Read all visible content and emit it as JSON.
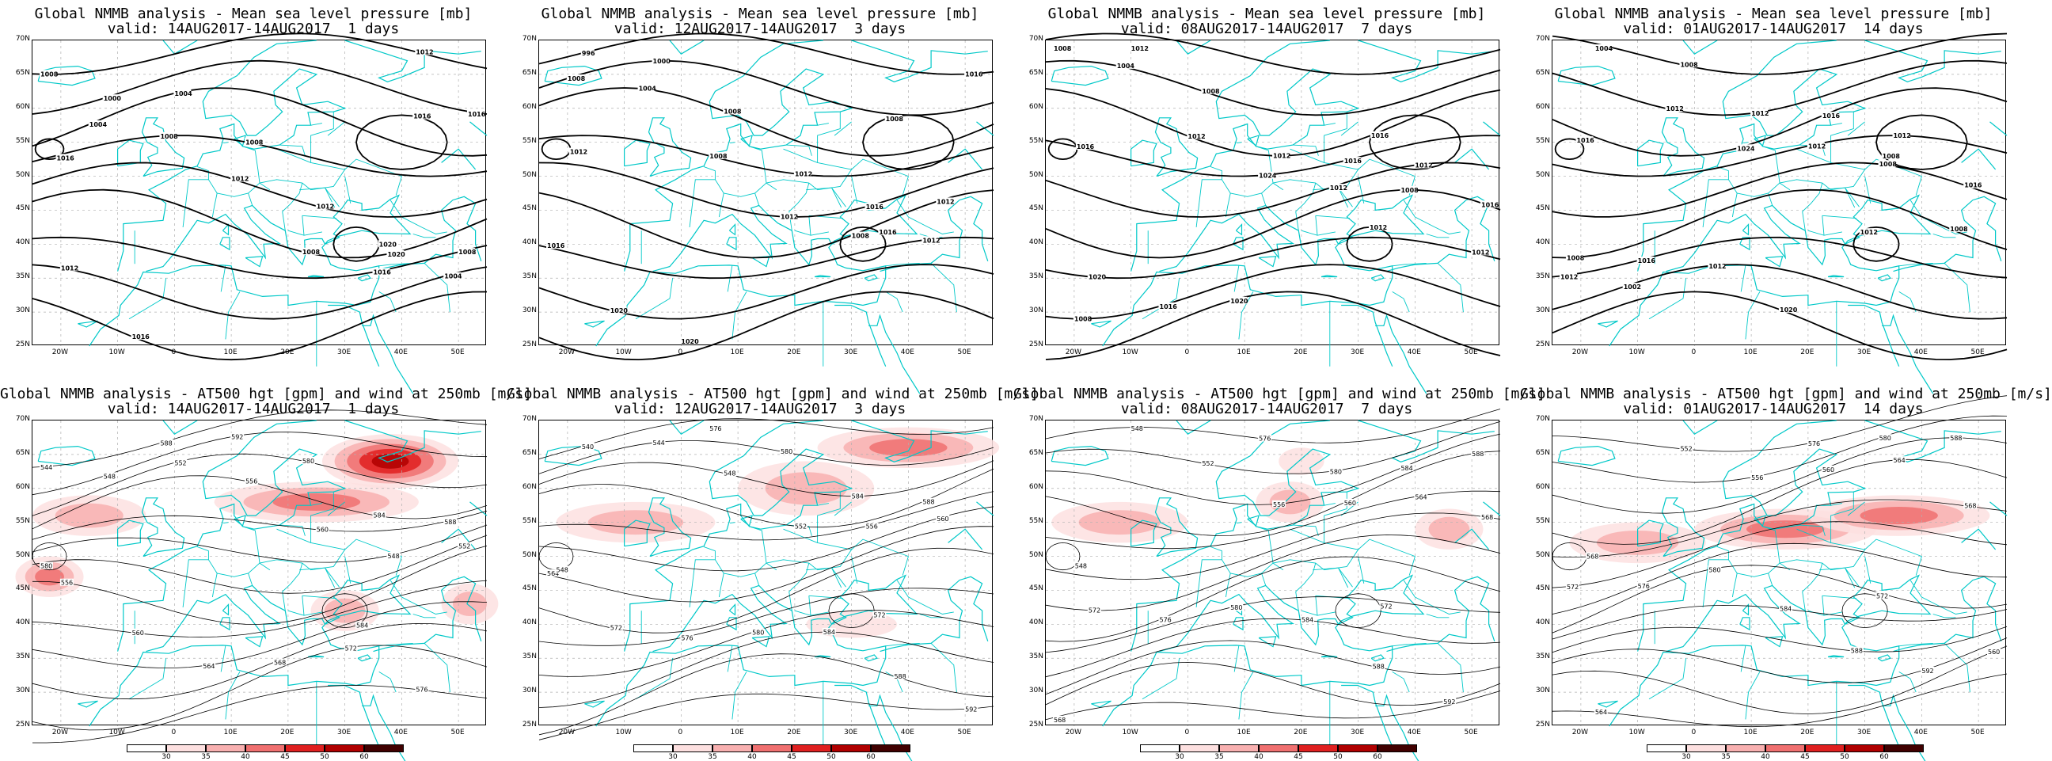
{
  "panels": [
    {
      "id": "slp-1",
      "kind": "slp",
      "title": "Global NMMB analysis - Mean sea level pressure [mb]",
      "valid": "valid: 14AUG2017-14AUG2017  1 days"
    },
    {
      "id": "slp-3",
      "kind": "slp",
      "title": "Global NMMB analysis - Mean sea level pressure [mb]",
      "valid": "valid: 12AUG2017-14AUG2017  3 days"
    },
    {
      "id": "slp-7",
      "kind": "slp",
      "title": "Global NMMB analysis - Mean sea level pressure [mb]",
      "valid": "valid: 08AUG2017-14AUG2017  7 days"
    },
    {
      "id": "slp-14",
      "kind": "slp",
      "title": "Global NMMB analysis - Mean sea level pressure [mb]",
      "valid": "valid: 01AUG2017-14AUG2017  14 days"
    },
    {
      "id": "z500-1",
      "kind": "z500",
      "title": "Global NMMB analysis - AT500 hgt [gpm] and wind at 250mb [m/s]",
      "valid": "valid: 14AUG2017-14AUG2017  1 days"
    },
    {
      "id": "z500-3",
      "kind": "z500",
      "title": "Global NMMB analysis - AT500 hgt [gpm] and wind at 250mb [m/s]",
      "valid": "valid: 12AUG2017-14AUG2017  3 days"
    },
    {
      "id": "z500-7",
      "kind": "z500",
      "title": "Global NMMB analysis - AT500 hgt [gpm] and wind at 250mb [m/s]",
      "valid": "valid: 08AUG2017-14AUG2017  7 days"
    },
    {
      "id": "z500-14",
      "kind": "z500",
      "title": "Global NMMB analysis - AT500 hgt [gpm] and wind at 250mb [m/s]",
      "valid": "valid: 01AUG2017-14AUG2017  14 days"
    }
  ],
  "axes": {
    "lat_labels": [
      "70N",
      "65N",
      "60N",
      "55N",
      "50N",
      "45N",
      "40N",
      "35N",
      "30N",
      "25N"
    ],
    "lon_labels": [
      "20W",
      "10W",
      "0",
      "10E",
      "20E",
      "30E",
      "40E",
      "50E"
    ]
  },
  "slp_labels": [
    [
      "1008",
      "1000",
      "1004",
      "1008",
      "1012",
      "1020",
      "1008",
      "1012",
      "1016",
      "1016",
      "1020",
      "1016",
      "1012",
      "1016",
      "1004",
      "1008",
      "1012",
      "1008",
      "1016",
      "1004"
    ],
    [
      "996",
      "1000",
      "1008",
      "1012",
      "1016",
      "1012",
      "1016",
      "1020",
      "1020",
      "1012",
      "1016",
      "1008",
      "1016",
      "1008",
      "1004",
      "1008",
      "1012",
      "1008",
      "1012"
    ],
    [
      "1012",
      "1008",
      "1012",
      "1016",
      "1012",
      "1016",
      "1020",
      "1016",
      "1020",
      "1016",
      "1012",
      "1016",
      "1008",
      "1004",
      "1012",
      "1024",
      "1012",
      "1008",
      "1012",
      "1008"
    ],
    [
      "1008",
      "1012",
      "1016",
      "1012",
      "1016",
      "1008",
      "1016",
      "1012",
      "1020",
      "1016",
      "1012",
      "1008",
      "1004",
      "1012",
      "1024",
      "1012",
      "1008",
      "1008",
      "1012",
      "1002"
    ]
  ],
  "z500_labels": [
    [
      "544",
      "548",
      "552",
      "556",
      "560",
      "548",
      "552",
      "556",
      "560",
      "564",
      "568",
      "572",
      "576",
      "580",
      "584",
      "588",
      "592",
      "580",
      "584",
      "588"
    ],
    [
      "540",
      "544",
      "548",
      "552",
      "556",
      "560",
      "564",
      "572",
      "576",
      "580",
      "584",
      "588",
      "592",
      "548",
      "572",
      "576",
      "580",
      "584",
      "588"
    ],
    [
      "548",
      "552",
      "556",
      "560",
      "564",
      "568",
      "572",
      "576",
      "580",
      "584",
      "588",
      "592",
      "568",
      "548",
      "572",
      "576",
      "580",
      "584",
      "588"
    ],
    [
      "552",
      "556",
      "560",
      "564",
      "568",
      "572",
      "576",
      "580",
      "584",
      "588",
      "592",
      "560",
      "564",
      "568",
      "572",
      "576",
      "580",
      "588"
    ]
  ],
  "colorbar": {
    "ticks": [
      "30",
      "35",
      "40",
      "45",
      "50",
      "60"
    ],
    "colors": [
      "#ffffff",
      "#fde0e0",
      "#f8b0b0",
      "#f07070",
      "#e02020",
      "#b00000",
      "#400000"
    ]
  },
  "colors": {
    "coast": "#00c8c8",
    "contour": "#000000",
    "grid": "#b0b0b0"
  }
}
